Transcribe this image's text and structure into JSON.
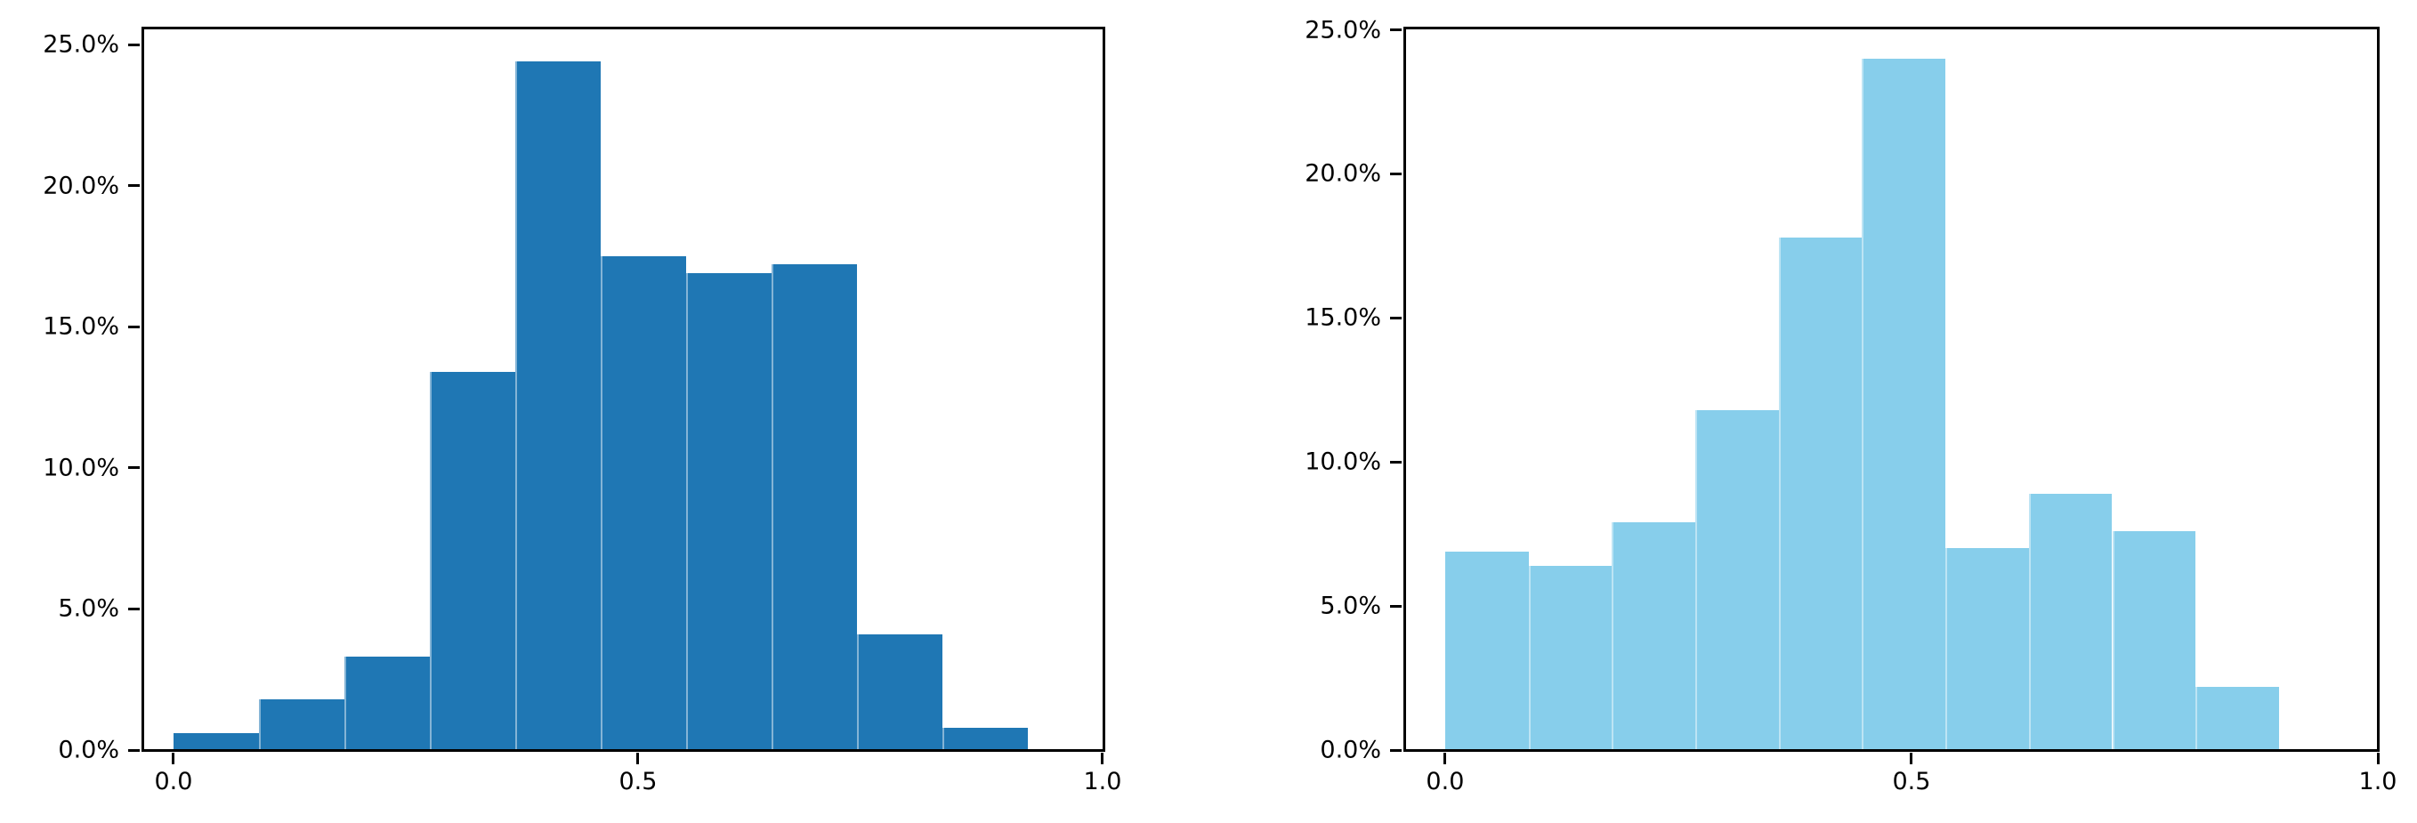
{
  "figure": {
    "background": "#ffffff",
    "text_color": "#000000",
    "spine_color": "#000000"
  },
  "chart_data": [
    {
      "type": "bar",
      "subtype": "histogram",
      "panel": "left",
      "title": "",
      "xlabel": "",
      "ylabel": "",
      "grid": false,
      "legend": null,
      "bar_color": "#1f77b4",
      "bin_start": 0.0,
      "bin_width": 0.092,
      "bin_edges": [
        0.0,
        0.092,
        0.184,
        0.276,
        0.368,
        0.46,
        0.552,
        0.644,
        0.736,
        0.828,
        0.92
      ],
      "values_percent": [
        0.6,
        1.8,
        3.3,
        13.4,
        24.4,
        17.5,
        16.9,
        17.2,
        4.1,
        0.8
      ],
      "xlim": [
        -0.0335,
        1.001
      ],
      "ylim_percent": [
        0,
        25.6
      ],
      "x_ticks": [
        {
          "value": 0.0,
          "label": "0.0"
        },
        {
          "value": 0.5,
          "label": "0.5"
        },
        {
          "value": 1.0,
          "label": "1.0"
        }
      ],
      "y_ticks": [
        {
          "value": 0.0,
          "label": "0.0%"
        },
        {
          "value": 5.0,
          "label": "5.0%"
        },
        {
          "value": 10.0,
          "label": "10.0%"
        },
        {
          "value": 15.0,
          "label": "15.0%"
        },
        {
          "value": 20.0,
          "label": "20.0%"
        },
        {
          "value": 25.0,
          "label": "25.0%"
        }
      ]
    },
    {
      "type": "bar",
      "subtype": "histogram",
      "panel": "right",
      "title": "",
      "xlabel": "",
      "ylabel": "",
      "grid": false,
      "legend": null,
      "bar_color": "#87ceeb",
      "bin_start": 0.0,
      "bin_width": 0.0894,
      "bin_edges": [
        0.0,
        0.0894,
        0.1788,
        0.2682,
        0.3576,
        0.447,
        0.5364,
        0.6258,
        0.7152,
        0.8046,
        0.894
      ],
      "values_percent": [
        6.9,
        6.4,
        7.9,
        11.8,
        17.8,
        24.0,
        7.0,
        8.9,
        7.6,
        2.2
      ],
      "xlim": [
        -0.0438,
        1.0
      ],
      "ylim_percent": [
        0,
        25.08
      ],
      "x_ticks": [
        {
          "value": 0.0,
          "label": "0.0"
        },
        {
          "value": 0.5,
          "label": "0.5"
        },
        {
          "value": 1.0,
          "label": "1.0"
        }
      ],
      "y_ticks": [
        {
          "value": 0.0,
          "label": "0.0%"
        },
        {
          "value": 5.0,
          "label": "5.0%"
        },
        {
          "value": 10.0,
          "label": "10.0%"
        },
        {
          "value": 15.0,
          "label": "15.0%"
        },
        {
          "value": 20.0,
          "label": "20.0%"
        },
        {
          "value": 25.0,
          "label": "25.0%"
        }
      ]
    }
  ]
}
